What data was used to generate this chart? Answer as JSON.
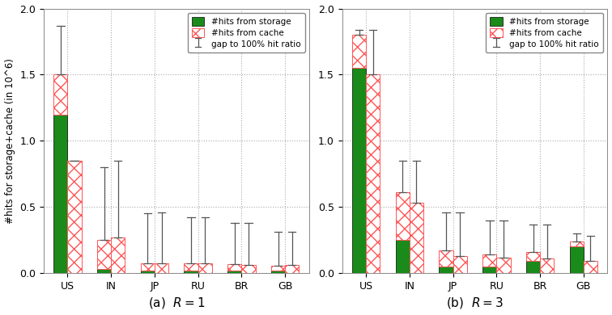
{
  "categories": [
    "US",
    "IN",
    "JP",
    "RU",
    "BR",
    "GB"
  ],
  "panel_a": {
    "title": "(a)  $R = 1$",
    "tag_storage": [
      1.2,
      0.03,
      0.02,
      0.02,
      0.02,
      0.02
    ],
    "tag_cache": [
      0.3,
      0.22,
      0.055,
      0.055,
      0.048,
      0.038
    ],
    "rand_storage": [
      0.0,
      0.0,
      0.0,
      0.0,
      0.0,
      0.0
    ],
    "rand_cache": [
      0.85,
      0.27,
      0.075,
      0.075,
      0.065,
      0.065
    ],
    "tag_error_top": [
      1.87,
      0.8,
      0.45,
      0.42,
      0.38,
      0.31
    ],
    "rand_error_top": [
      0.85,
      0.85,
      0.46,
      0.42,
      0.38,
      0.31
    ]
  },
  "panel_b": {
    "title": "(b)  $R = 3$",
    "tag_storage": [
      1.55,
      0.25,
      0.05,
      0.05,
      0.09,
      0.2
    ],
    "tag_cache": [
      0.25,
      0.36,
      0.12,
      0.09,
      0.07,
      0.04
    ],
    "rand_storage": [
      0.0,
      0.0,
      0.0,
      0.0,
      0.0,
      0.0
    ],
    "rand_cache": [
      1.5,
      0.53,
      0.13,
      0.12,
      0.11,
      0.09
    ],
    "tag_error_top": [
      1.84,
      0.85,
      0.46,
      0.4,
      0.37,
      0.3
    ],
    "rand_error_top": [
      1.84,
      0.85,
      0.46,
      0.4,
      0.37,
      0.28
    ]
  },
  "ylim": [
    0,
    2.0
  ],
  "yticks": [
    0,
    0.5,
    1.0,
    1.5,
    2.0
  ],
  "ylabel": "#hits for storage+cache (in 10^6)",
  "storage_color": "#1a8a1a",
  "cache_facecolor": "#ffffff",
  "cache_edgecolor": "#ff5555",
  "bar_width": 0.32,
  "legend_labels": [
    "#hits from storage",
    "#hits from cache",
    "gap to 100% hit ratio"
  ],
  "bg_color": "#ffffff",
  "grid_color": "#aaaaaa",
  "errorbar_color": "#555555"
}
